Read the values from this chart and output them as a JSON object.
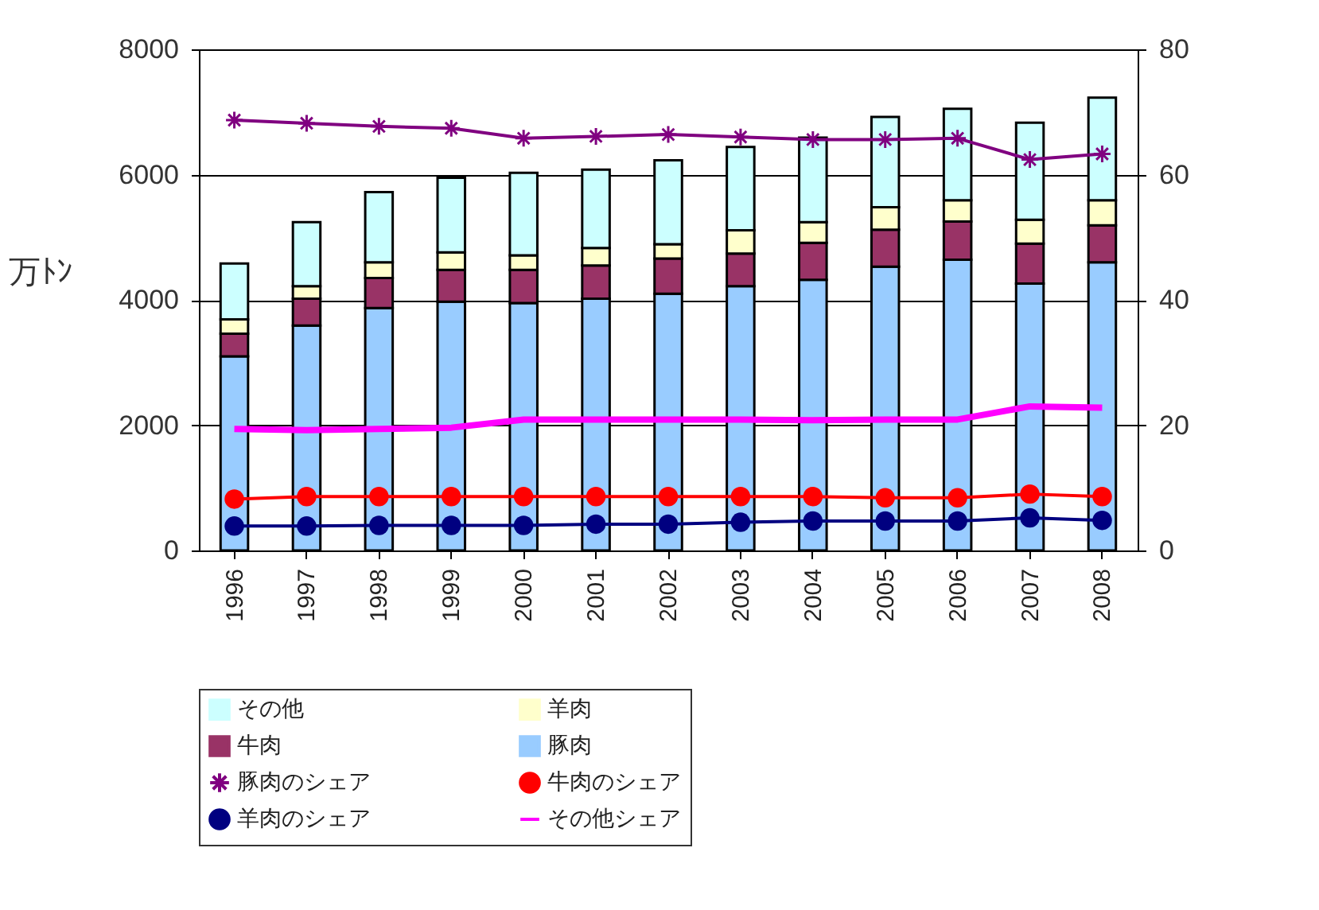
{
  "chart_data": {
    "type": "bar",
    "stacked": true,
    "ylabel": "万ﾄﾝ",
    "categories": [
      "1996",
      "1997",
      "1998",
      "1999",
      "2000",
      "2001",
      "2002",
      "2003",
      "2004",
      "2005",
      "2006",
      "2007",
      "2008"
    ],
    "ylim": [
      0,
      8000
    ],
    "yticks": [
      0,
      2000,
      4000,
      6000,
      8000
    ],
    "y2lim": [
      0,
      80
    ],
    "y2ticks": [
      0,
      20,
      40,
      60,
      80
    ],
    "grid": "y",
    "legend": "bottom",
    "series": [
      {
        "name": "豚肉",
        "color": "#99ccff",
        "values": [
          3100,
          3590,
          3870,
          3970,
          3950,
          4020,
          4100,
          4220,
          4320,
          4530,
          4640,
          4260,
          4600
        ]
      },
      {
        "name": "牛肉",
        "color": "#993366",
        "values": [
          360,
          430,
          480,
          510,
          530,
          530,
          560,
          520,
          590,
          590,
          610,
          640,
          590
        ]
      },
      {
        "name": "羊肉",
        "color": "#ffffcc",
        "values": [
          230,
          200,
          250,
          280,
          230,
          280,
          230,
          370,
          330,
          360,
          340,
          380,
          400
        ]
      },
      {
        "name": "その他",
        "color": "#ccffff",
        "values": [
          890,
          1020,
          1120,
          1190,
          1320,
          1250,
          1340,
          1330,
          1350,
          1440,
          1460,
          1550,
          1640
        ]
      },
      {
        "name": "豚肉のシェア",
        "type": "line",
        "axis": "y2",
        "marker": "cross",
        "color": "#800080",
        "values": [
          68.7,
          68.2,
          67.7,
          67.4,
          65.8,
          66.1,
          66.4,
          66.0,
          65.6,
          65.6,
          65.8,
          62.4,
          63.3
        ]
      },
      {
        "name": "牛肉のシェア",
        "type": "line",
        "axis": "y2",
        "marker": "circle",
        "color": "#ff0000",
        "values": [
          8.2,
          8.6,
          8.6,
          8.6,
          8.6,
          8.6,
          8.6,
          8.6,
          8.6,
          8.4,
          8.4,
          9.0,
          8.6
        ]
      },
      {
        "name": "羊肉のシェア",
        "type": "line",
        "axis": "y2",
        "marker": "circle",
        "color": "#000080",
        "values": [
          3.9,
          3.9,
          4.0,
          4.0,
          4.0,
          4.2,
          4.2,
          4.5,
          4.7,
          4.7,
          4.7,
          5.2,
          4.8
        ]
      },
      {
        "name": "その他シェア",
        "type": "line",
        "axis": "y2",
        "marker": "none",
        "color": "#ff00ff",
        "values": [
          19.4,
          19.2,
          19.4,
          19.6,
          20.9,
          20.9,
          20.9,
          20.9,
          20.8,
          20.9,
          20.9,
          23.0,
          22.8
        ]
      }
    ]
  }
}
